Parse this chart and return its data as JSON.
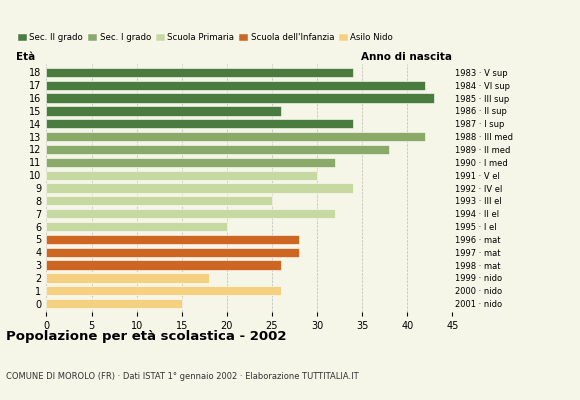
{
  "ages": [
    18,
    17,
    16,
    15,
    14,
    13,
    12,
    11,
    10,
    9,
    8,
    7,
    6,
    5,
    4,
    3,
    2,
    1,
    0
  ],
  "values": [
    34,
    42,
    43,
    26,
    34,
    42,
    38,
    32,
    30,
    34,
    25,
    32,
    20,
    28,
    28,
    26,
    18,
    26,
    15
  ],
  "colors": [
    "#4a7c40",
    "#4a7c40",
    "#4a7c40",
    "#4a7c40",
    "#4a7c40",
    "#8aaa6a",
    "#8aaa6a",
    "#8aaa6a",
    "#c5d9a0",
    "#c5d9a0",
    "#c5d9a0",
    "#c5d9a0",
    "#c5d9a0",
    "#cc6622",
    "#cc6622",
    "#cc6622",
    "#f5d080",
    "#f5d080",
    "#f5d080"
  ],
  "right_labels": [
    "1983 · V sup",
    "1984 · VI sup",
    "1985 · III sup",
    "1986 · II sup",
    "1987 · I sup",
    "1988 · III med",
    "1989 · II med",
    "1990 · I med",
    "1991 · V el",
    "1992 · IV el",
    "1993 · III el",
    "1994 · II el",
    "1995 · I el",
    "1996 · mat",
    "1997 · mat",
    "1998 · mat",
    "1999 · nido",
    "2000 · nido",
    "2001 · nido"
  ],
  "legend_labels": [
    "Sec. II grado",
    "Sec. I grado",
    "Scuola Primaria",
    "Scuola dell'Infanzia",
    "Asilo Nido"
  ],
  "legend_colors": [
    "#4a7c40",
    "#8aaa6a",
    "#c5d9a0",
    "#cc6622",
    "#f5d080"
  ],
  "title": "Popolazione per età scolastica - 2002",
  "subtitle": "COMUNE DI MOROLO (FR) · Dati ISTAT 1° gennaio 2002 · Elaborazione TUTTITALIA.IT",
  "xlabel_left": "Età",
  "xlabel_right": "Anno di nascita",
  "xlim": [
    0,
    45
  ],
  "xticks": [
    0,
    5,
    10,
    15,
    20,
    25,
    30,
    35,
    40,
    45
  ],
  "bar_height": 0.72,
  "background_color": "#f5f5e8",
  "grid_color": "#bbbbbb"
}
